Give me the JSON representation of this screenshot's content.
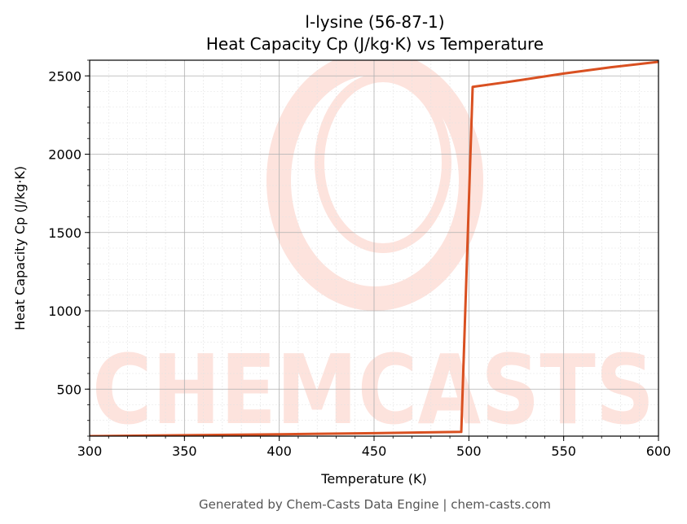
{
  "chart_data": {
    "type": "line",
    "title": "l-lysine (56-87-1)",
    "subtitle": "Heat Capacity Cp (J/kg·K) vs Temperature",
    "xlabel": "Temperature (K)",
    "ylabel": "Heat Capacity Cp (J/kg·K)",
    "xlim": [
      300,
      600
    ],
    "ylim": [
      200,
      2600
    ],
    "xticks": [
      300,
      350,
      400,
      450,
      500,
      550,
      600
    ],
    "yticks": [
      500,
      1000,
      1500,
      2000,
      2500
    ],
    "grid": true,
    "line_color": "#d95021",
    "series": [
      {
        "x": [
          300,
          350,
          400,
          450,
          496,
          502,
          520,
          550,
          575,
          600
        ],
        "values": [
          200,
          206,
          212,
          219,
          227,
          2430,
          2460,
          2515,
          2555,
          2590
        ]
      }
    ]
  },
  "watermark": {
    "text": "CHEMCASTS",
    "color": "#fde3dd"
  },
  "footer": "Generated by Chem-Casts Data Engine | chem-casts.com"
}
